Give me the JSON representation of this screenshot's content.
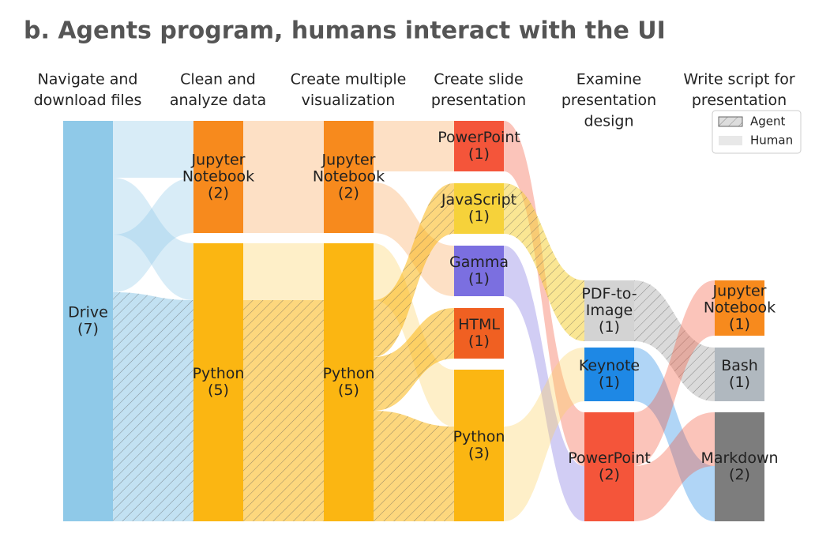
{
  "title": "b.  Agents program, humans interact with the UI",
  "legend": {
    "agent": "Agent",
    "human": "Human"
  },
  "columns": [
    {
      "header": [
        "Navigate and",
        "download files"
      ],
      "nodes": [
        {
          "label": [
            "Drive"
          ],
          "count": "(7)"
        }
      ]
    },
    {
      "header": [
        "Clean and",
        "analyze data"
      ],
      "nodes": [
        {
          "label": [
            "Jupyter",
            "Notebook"
          ],
          "count": "(2)"
        },
        {
          "label": [
            "Python"
          ],
          "count": "(5)"
        }
      ]
    },
    {
      "header": [
        "Create multiple",
        "visualization"
      ],
      "nodes": [
        {
          "label": [
            "Jupyter",
            "Notebook"
          ],
          "count": "(2)"
        },
        {
          "label": [
            "Python"
          ],
          "count": "(5)"
        }
      ]
    },
    {
      "header": [
        "Create slide",
        "presentation"
      ],
      "nodes": [
        {
          "label": [
            "PowerPoint"
          ],
          "count": "(1)"
        },
        {
          "label": [
            "JavaScript"
          ],
          "count": "(1)"
        },
        {
          "label": [
            "Gamma"
          ],
          "count": "(1)"
        },
        {
          "label": [
            "HTML"
          ],
          "count": "(1)"
        },
        {
          "label": [
            "Python"
          ],
          "count": "(3)"
        }
      ]
    },
    {
      "header": [
        "Examine",
        "presentation",
        "design"
      ],
      "nodes": [
        {
          "label": [
            "PDF-to-",
            "Image"
          ],
          "count": "(1)"
        },
        {
          "label": [
            "Keynote"
          ],
          "count": "(1)"
        },
        {
          "label": [
            "PowerPoint"
          ],
          "count": "(2)"
        }
      ]
    },
    {
      "header": [
        "Write script for",
        "presentation"
      ],
      "nodes": [
        {
          "label": [
            "Jupyter",
            "Notebook"
          ],
          "count": "(1)"
        },
        {
          "label": [
            "Bash"
          ],
          "count": "(1)"
        },
        {
          "label": [
            "Markdown"
          ],
          "count": "(2)"
        }
      ]
    }
  ]
}
